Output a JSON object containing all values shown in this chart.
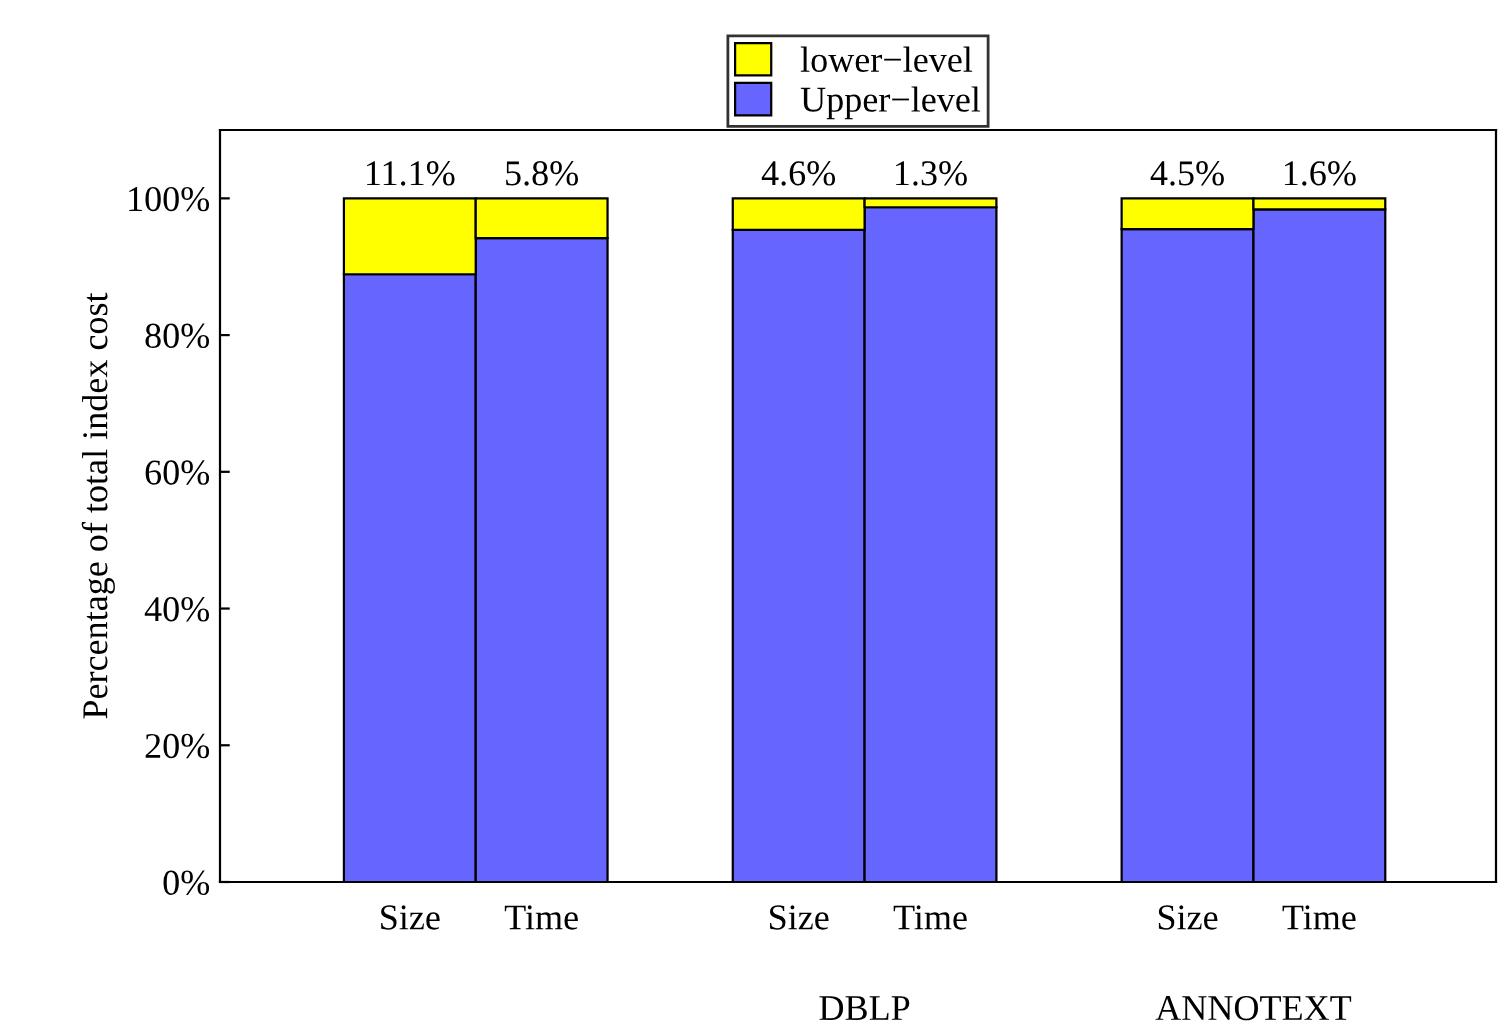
{
  "chart_data": {
    "type": "bar",
    "stacked": true,
    "ylabel": "Percentage of total index cost",
    "categories": [
      "Size",
      "Time",
      "Size",
      "Time",
      "Size",
      "Time"
    ],
    "series": [
      {
        "name": "Upper−level",
        "color": "#6666ff",
        "values": [
          88.9,
          94.2,
          95.4,
          98.7,
          95.5,
          98.4
        ]
      },
      {
        "name": "lower−level",
        "color": "#ffff00",
        "values": [
          11.1,
          5.8,
          4.6,
          1.3,
          4.5,
          1.6
        ],
        "value_labels": [
          "11.1%",
          "5.8%",
          "4.6%",
          "1.3%",
          "4.5%",
          "1.6%"
        ]
      }
    ],
    "annotations": [
      "DBLP",
      "ANNOTEXT"
    ],
    "ylim": [
      0,
      110
    ],
    "yticks": [
      {
        "value": 0,
        "label": "0%"
      },
      {
        "value": 20,
        "label": "20%"
      },
      {
        "value": 40,
        "label": "40%"
      },
      {
        "value": 60,
        "label": "60%"
      },
      {
        "value": 80,
        "label": "80%"
      },
      {
        "value": 100,
        "label": "100%"
      }
    ],
    "grid": false,
    "legend": "top"
  }
}
